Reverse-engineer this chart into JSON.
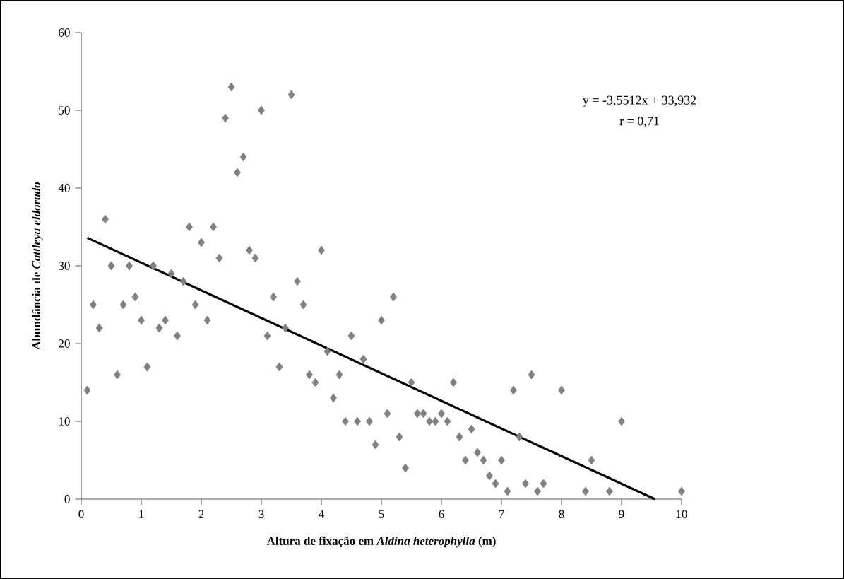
{
  "chart_data": {
    "type": "scatter",
    "xlabel": "Altura de fixação em *Aldina heterophylla* (m)",
    "ylabel": "Abundância de *Cattleya eldorado*",
    "annotations": [
      "y = -3,5512x + 33,932",
      "r = 0,71"
    ],
    "xlim": [
      0,
      10
    ],
    "ylim": [
      0,
      60
    ],
    "xticks": [
      0,
      1,
      2,
      3,
      4,
      5,
      6,
      7,
      8,
      9,
      10
    ],
    "yticks": [
      0,
      10,
      20,
      30,
      40,
      50,
      60
    ],
    "series": [
      {
        "marker": "diamond",
        "color": "#808080",
        "x": [
          0.1,
          0.2,
          0.3,
          0.4,
          0.5,
          0.6,
          0.7,
          0.8,
          0.9,
          1.0,
          1.1,
          1.2,
          1.3,
          1.4,
          1.5,
          1.6,
          1.7,
          1.8,
          1.9,
          2.0,
          2.1,
          2.2,
          2.3,
          2.4,
          2.5,
          2.6,
          2.7,
          2.8,
          2.9,
          3.0,
          3.1,
          3.2,
          3.3,
          3.4,
          3.5,
          3.6,
          3.7,
          3.8,
          3.9,
          4.0,
          4.1,
          4.2,
          4.3,
          4.4,
          4.5,
          4.6,
          4.7,
          4.8,
          4.9,
          5.0,
          5.1,
          5.2,
          5.3,
          5.4,
          5.5,
          5.6,
          5.7,
          5.8,
          5.9,
          6.0,
          6.1,
          6.2,
          6.3,
          6.4,
          6.5,
          6.6,
          6.7,
          6.8,
          6.9,
          7.0,
          7.1,
          7.2,
          7.3,
          7.4,
          7.5,
          7.6,
          7.7,
          8.0,
          8.4,
          8.5,
          8.8,
          9.0,
          10.0
        ],
        "values": [
          14,
          25,
          22,
          36,
          30,
          16,
          25,
          30,
          26,
          23,
          17,
          30,
          22,
          23,
          29,
          21,
          28,
          35,
          25,
          33,
          23,
          35,
          31,
          49,
          53,
          42,
          44,
          32,
          31,
          50,
          21,
          26,
          17,
          22,
          52,
          28,
          25,
          16,
          15,
          32,
          19,
          13,
          16,
          10,
          21,
          10,
          18,
          10,
          7,
          23,
          11,
          26,
          8,
          4,
          15,
          11,
          11,
          10,
          10,
          11,
          10,
          15,
          8,
          5,
          9,
          6,
          5,
          3,
          2,
          5,
          1,
          14,
          8,
          2,
          16,
          1,
          2,
          14,
          1,
          5,
          1,
          10,
          1
        ]
      },
      {
        "type": "line",
        "marker": "none",
        "line_style": "solid",
        "color": "#000000",
        "x": [
          0.1,
          9.555
        ],
        "values": [
          33.6,
          0
        ]
      }
    ]
  }
}
